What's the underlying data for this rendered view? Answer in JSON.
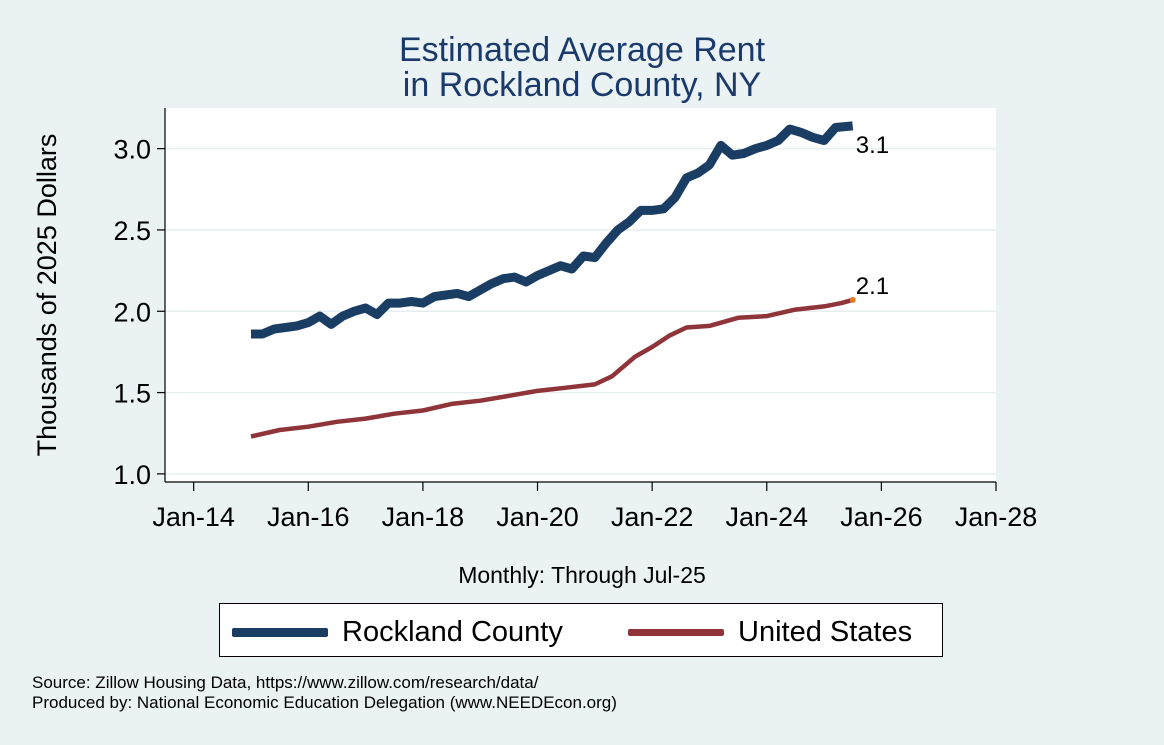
{
  "title": [
    "Estimated Average Rent",
    "in Rockland County, NY"
  ],
  "colors": {
    "title": "#1a3a6b",
    "rockland": "#1a3d64",
    "us": "#8f3438",
    "us_end": "#e07a20"
  },
  "chart_data": {
    "type": "line",
    "title": "Estimated Average Rent in Rockland County, NY",
    "xlabel": "Monthly: Through Jul-25",
    "ylabel": "Thousands of 2025 Dollars",
    "x_unit": "years since Jan-2000",
    "xlim": [
      13.5,
      28
    ],
    "ylim": [
      0.95,
      3.25
    ],
    "x_ticks": [
      {
        "x": 14,
        "label": "Jan-14"
      },
      {
        "x": 16,
        "label": "Jan-16"
      },
      {
        "x": 18,
        "label": "Jan-18"
      },
      {
        "x": 20,
        "label": "Jan-20"
      },
      {
        "x": 22,
        "label": "Jan-22"
      },
      {
        "x": 24,
        "label": "Jan-24"
      },
      {
        "x": 26,
        "label": "Jan-26"
      },
      {
        "x": 28,
        "label": "Jan-28"
      }
    ],
    "y_ticks": [
      {
        "y": 1.0,
        "label": "1.0"
      },
      {
        "y": 1.5,
        "label": "1.5"
      },
      {
        "y": 2.0,
        "label": "2.0"
      },
      {
        "y": 2.5,
        "label": "2.5"
      },
      {
        "y": 3.0,
        "label": "3.0"
      }
    ],
    "grid": true,
    "series": [
      {
        "name": "Rockland County",
        "end_label": "3.1",
        "points": [
          [
            15.0,
            1.86
          ],
          [
            15.2,
            1.86
          ],
          [
            15.4,
            1.89
          ],
          [
            15.6,
            1.9
          ],
          [
            15.8,
            1.91
          ],
          [
            16.0,
            1.93
          ],
          [
            16.2,
            1.97
          ],
          [
            16.4,
            1.92
          ],
          [
            16.6,
            1.97
          ],
          [
            16.8,
            2.0
          ],
          [
            17.0,
            2.02
          ],
          [
            17.2,
            1.98
          ],
          [
            17.4,
            2.05
          ],
          [
            17.6,
            2.05
          ],
          [
            17.8,
            2.06
          ],
          [
            18.0,
            2.05
          ],
          [
            18.2,
            2.09
          ],
          [
            18.4,
            2.1
          ],
          [
            18.6,
            2.11
          ],
          [
            18.8,
            2.09
          ],
          [
            19.0,
            2.13
          ],
          [
            19.2,
            2.17
          ],
          [
            19.4,
            2.2
          ],
          [
            19.6,
            2.21
          ],
          [
            19.8,
            2.18
          ],
          [
            20.0,
            2.22
          ],
          [
            20.2,
            2.25
          ],
          [
            20.4,
            2.28
          ],
          [
            20.6,
            2.26
          ],
          [
            20.8,
            2.34
          ],
          [
            21.0,
            2.33
          ],
          [
            21.2,
            2.42
          ],
          [
            21.4,
            2.5
          ],
          [
            21.6,
            2.55
          ],
          [
            21.8,
            2.62
          ],
          [
            22.0,
            2.62
          ],
          [
            22.2,
            2.63
          ],
          [
            22.4,
            2.7
          ],
          [
            22.6,
            2.82
          ],
          [
            22.8,
            2.85
          ],
          [
            23.0,
            2.9
          ],
          [
            23.2,
            3.02
          ],
          [
            23.4,
            2.96
          ],
          [
            23.6,
            2.97
          ],
          [
            23.8,
            3.0
          ],
          [
            24.0,
            3.02
          ],
          [
            24.2,
            3.05
          ],
          [
            24.4,
            3.12
          ],
          [
            24.6,
            3.1
          ],
          [
            24.8,
            3.07
          ],
          [
            25.0,
            3.05
          ],
          [
            25.2,
            3.13
          ],
          [
            25.5,
            3.14
          ]
        ]
      },
      {
        "name": "United States",
        "end_label": "2.1",
        "points": [
          [
            15.0,
            1.23
          ],
          [
            15.5,
            1.27
          ],
          [
            16.0,
            1.29
          ],
          [
            16.5,
            1.32
          ],
          [
            17.0,
            1.34
          ],
          [
            17.5,
            1.37
          ],
          [
            18.0,
            1.39
          ],
          [
            18.5,
            1.43
          ],
          [
            19.0,
            1.45
          ],
          [
            19.5,
            1.48
          ],
          [
            20.0,
            1.51
          ],
          [
            20.5,
            1.53
          ],
          [
            21.0,
            1.55
          ],
          [
            21.3,
            1.6
          ],
          [
            21.7,
            1.72
          ],
          [
            22.0,
            1.78
          ],
          [
            22.3,
            1.85
          ],
          [
            22.6,
            1.9
          ],
          [
            23.0,
            1.91
          ],
          [
            23.5,
            1.96
          ],
          [
            24.0,
            1.97
          ],
          [
            24.5,
            2.01
          ],
          [
            25.0,
            2.03
          ],
          [
            25.3,
            2.05
          ],
          [
            25.5,
            2.07
          ]
        ]
      }
    ],
    "legend": "bottom-center"
  },
  "legend": [
    {
      "label": "Rockland County"
    },
    {
      "label": "United States"
    }
  ],
  "notes": {
    "source": "Source: Zillow Housing Data, https://www.zillow.com/research/data/",
    "produced": "Produced by: National Economic Education Delegation (www.NEEDEcon.org)"
  }
}
